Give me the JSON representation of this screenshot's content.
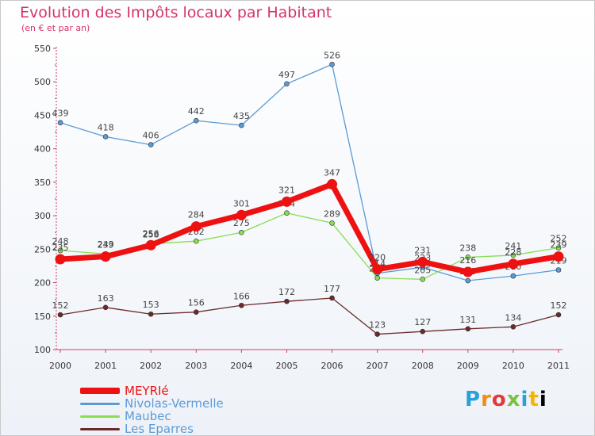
{
  "chart_data": {
    "type": "line",
    "title": "Evolution des Impôts locaux par Habitant",
    "subtitle": "(en € et par an)",
    "xlabel": "",
    "ylabel": "",
    "x": [
      2000,
      2001,
      2002,
      2003,
      2004,
      2005,
      2006,
      2007,
      2008,
      2009,
      2010,
      2011
    ],
    "ylim": [
      100,
      550
    ],
    "yticks": [
      100,
      150,
      200,
      250,
      300,
      350,
      400,
      450,
      500,
      550
    ],
    "grid": false,
    "legend": "bottom-left",
    "series": [
      {
        "name": "MEYRIé",
        "color": "#ee1111",
        "emphasis": true,
        "values": [
          235,
          239,
          256,
          284,
          301,
          321,
          347,
          220,
          231,
          216,
          228,
          239
        ]
      },
      {
        "name": "Nivolas-Vermelle",
        "color": "#5b9bd5",
        "emphasis": false,
        "values": [
          439,
          418,
          406,
          442,
          435,
          497,
          526,
          214,
          223,
          203,
          210,
          219
        ]
      },
      {
        "name": "Maubec",
        "color": "#88dd55",
        "emphasis": false,
        "values": [
          248,
          243,
          258,
          262,
          275,
          304,
          289,
          207,
          205,
          238,
          241,
          252
        ]
      },
      {
        "name": "Les Eparres",
        "color": "#6b2a2a",
        "emphasis": false,
        "values": [
          152,
          163,
          153,
          156,
          166,
          172,
          177,
          123,
          127,
          131,
          134,
          152
        ]
      }
    ]
  },
  "logo": {
    "letters": [
      "P",
      "r",
      "o",
      "x",
      "i",
      "t",
      "i"
    ]
  }
}
